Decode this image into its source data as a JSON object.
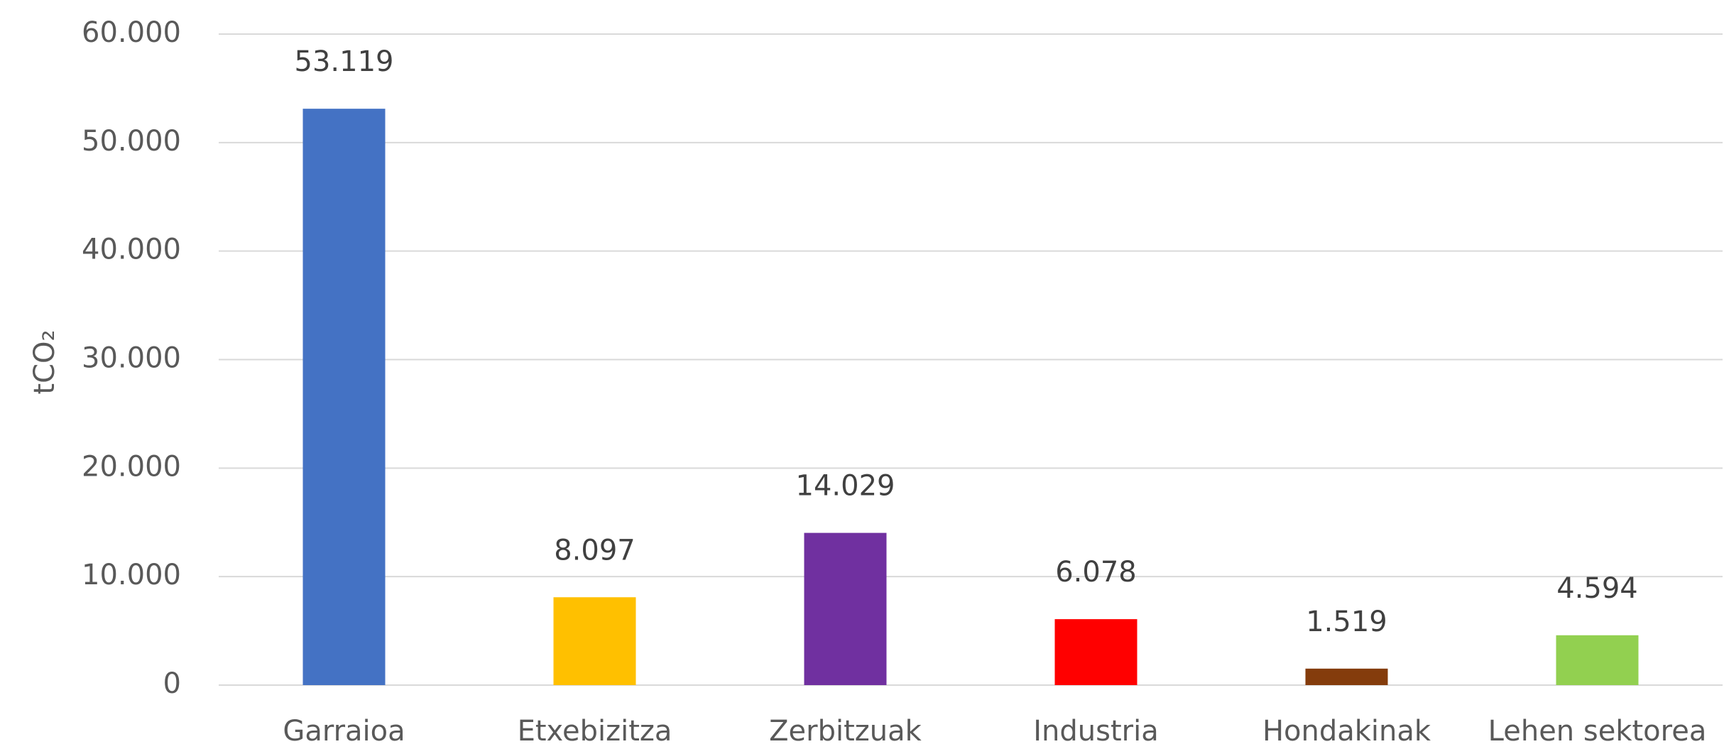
{
  "chart_data": {
    "type": "bar",
    "y_label": "tCO₂",
    "categories": [
      "Garraioa",
      "Etxebizitza",
      "Zerbitzuak",
      "Industria",
      "Hondakinak",
      "Lehen sektorea"
    ],
    "values": [
      53119,
      8097,
      14029,
      6078,
      1519,
      4594
    ],
    "value_labels": [
      "53.119",
      "8.097",
      "14.029",
      "6.078",
      "1.519",
      "4.594"
    ],
    "colors": [
      "#4472c4",
      "#ffc000",
      "#7030a0",
      "#ff0000",
      "#843c0c",
      "#92d050"
    ],
    "ylim": [
      0,
      60000
    ],
    "yticks": [
      0,
      {
        "value": 10000,
        "label": "10.000"
      },
      {
        "value": 20000,
        "label": "20.000"
      },
      {
        "value": 30000,
        "label": "30.000"
      },
      {
        "value": 40000,
        "label": "40.000"
      },
      {
        "value": 50000,
        "label": "50.000"
      },
      {
        "value": 60000,
        "label": "60.000"
      }
    ],
    "grid": true
  }
}
